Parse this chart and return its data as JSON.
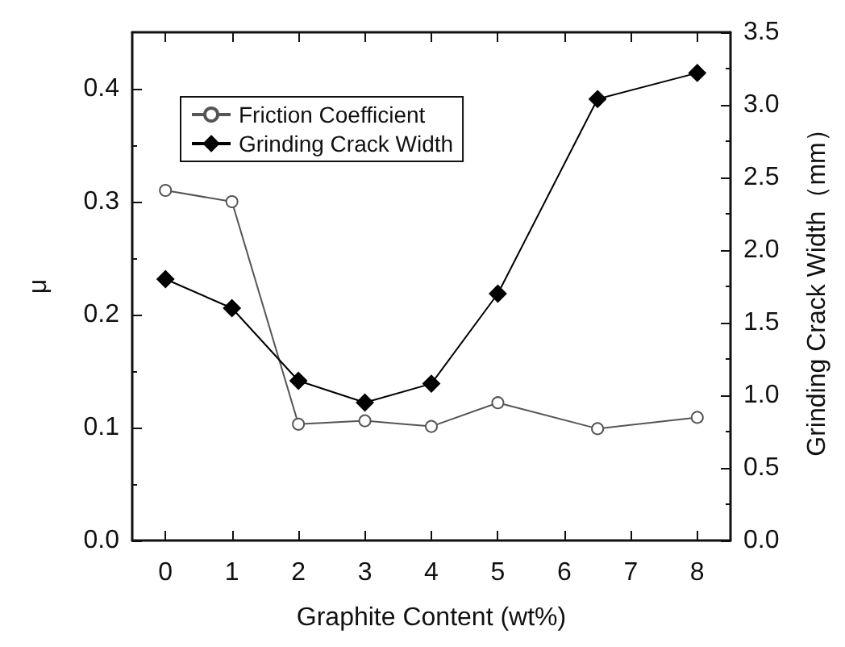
{
  "chart_data": {
    "type": "line",
    "xlabel": "Graphite Content (wt%)",
    "ylabel": "μ",
    "y2label": "Grinding Crack Width（mm）",
    "x": [
      0,
      1,
      2,
      3,
      4,
      5,
      6.5,
      8
    ],
    "series": [
      {
        "name": "Friction Coefficient",
        "color": "#555555",
        "marker": "circle",
        "values": [
          0.31,
          0.3,
          0.103,
          0.106,
          0.101,
          0.122,
          0.099,
          0.109
        ]
      },
      {
        "name": "Grinding Crack Width",
        "color": "#000000",
        "marker": "diamond",
        "axis": "y2",
        "values": [
          1.8,
          1.6,
          1.1,
          0.95,
          1.08,
          1.7,
          3.04,
          3.22
        ]
      }
    ],
    "xlim": [
      -0.5,
      8.5
    ],
    "xticks": [
      0,
      1,
      2,
      3,
      4,
      5,
      6,
      7,
      8
    ],
    "ylim": [
      0,
      0.45
    ],
    "yticks": [
      {
        "value": 0,
        "label": "0.0"
      },
      0.1,
      0.2,
      0.3,
      0.4
    ],
    "y2lim": [
      0,
      3.5
    ],
    "y2ticks": [
      {
        "value": 0,
        "label": "0.0"
      },
      0.5,
      {
        "value": 1,
        "label": "1.0"
      },
      1.5,
      {
        "value": 2,
        "label": "2.0"
      },
      2.5,
      {
        "value": 3,
        "label": "3.0"
      },
      3.5
    ],
    "grid": false,
    "legend": "top left",
    "line_style": "solid"
  }
}
